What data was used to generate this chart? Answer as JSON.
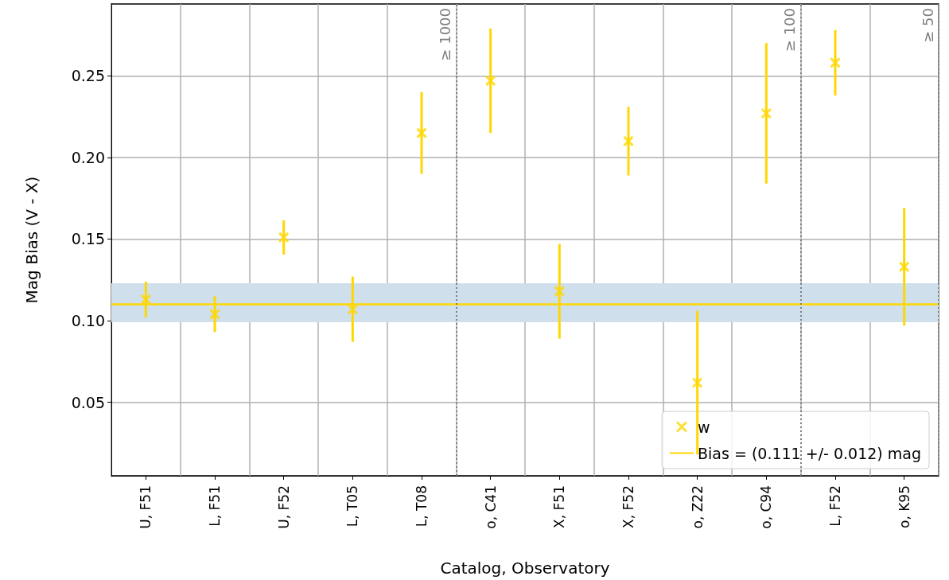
{
  "chart_data": {
    "type": "scatter",
    "xlabel": "Catalog, Observatory",
    "ylabel": "Mag Bias (V - X)",
    "categories": [
      "U, F51",
      "L, F51",
      "U, F52",
      "L, T05",
      "L, T08",
      "o, C41",
      "X, F51",
      "X, F52",
      "o, Z22",
      "o, C94",
      "L, F52",
      "o, K95"
    ],
    "series": [
      {
        "name": "w",
        "color": "#ffd700",
        "marker": "cross",
        "values": [
          0.113,
          0.104,
          0.151,
          0.107,
          0.215,
          0.247,
          0.118,
          0.21,
          0.062,
          0.227,
          0.258,
          0.133
        ],
        "errors": [
          0.011,
          0.011,
          0.0105,
          0.02,
          0.025,
          0.032,
          0.029,
          0.021,
          0.044,
          0.043,
          0.02,
          0.036
        ]
      }
    ],
    "ref_lines": [
      {
        "axis": "y",
        "value": 0.111,
        "label": "Bias = (0.111 +/- 0.012) mag",
        "color": "#ffd700",
        "line_style": "solid"
      }
    ],
    "annotations": [
      "≥ 1000",
      "≥ 100",
      "≥ 50"
    ],
    "bands": [
      {
        "axis": "y",
        "from": 0.099,
        "to": 0.123,
        "color": "#cfdfec"
      }
    ],
    "ylim": [
      0.005,
      0.294
    ],
    "yticks": [
      0.05,
      {
        "value": 0.1,
        "label": "0.10"
      },
      0.15,
      {
        "value": 0.2,
        "label": "0.20"
      },
      0.25
    ],
    "grid": true,
    "legend": "bottom right"
  }
}
